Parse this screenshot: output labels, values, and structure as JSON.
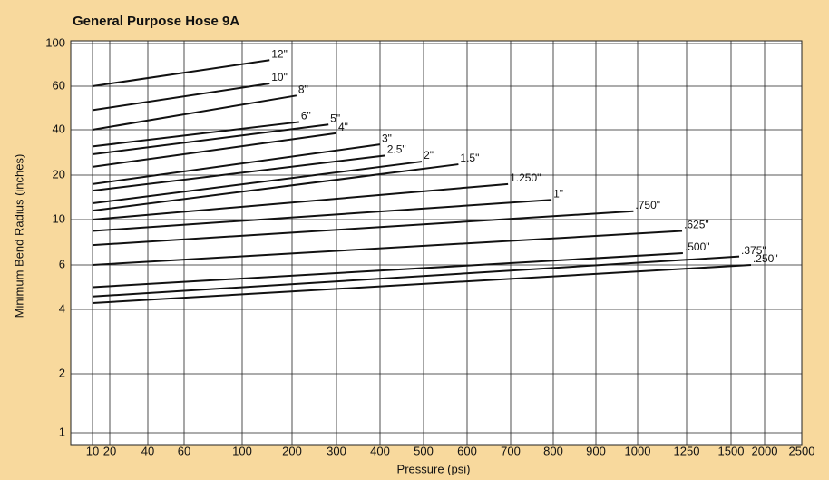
{
  "chart_data": {
    "type": "line",
    "title": "General Purpose Hose 9A",
    "x_label": "Pressure (psi)",
    "y_label": "Minimum Bend Radius (inches)",
    "xlim": [
      10,
      2500
    ],
    "ylim": [
      1,
      100
    ],
    "xticks": [
      10,
      20,
      40,
      60,
      100,
      200,
      300,
      400,
      500,
      600,
      700,
      800,
      900,
      1000,
      1250,
      1500,
      2000,
      2500
    ],
    "yticks": [
      1,
      2,
      4,
      6,
      10,
      20,
      40,
      60,
      100
    ],
    "grid": true,
    "color": "#111111",
    "series": [
      {
        "name": "12\"",
        "x": [
          10,
          155
        ],
        "values": [
          60,
          82
        ]
      },
      {
        "name": "10\"",
        "x": [
          10,
          155
        ],
        "values": [
          48,
          62
        ]
      },
      {
        "name": "8\"",
        "x": [
          10,
          210
        ],
        "values": [
          40,
          55
        ]
      },
      {
        "name": "6\"",
        "x": [
          10,
          216
        ],
        "values": [
          31,
          43
        ]
      },
      {
        "name": "5\"",
        "x": [
          10,
          282
        ],
        "values": [
          27.5,
          42
        ]
      },
      {
        "name": "4\"",
        "x": [
          10,
          300
        ],
        "values": [
          22.7,
          38
        ]
      },
      {
        "name": "3\"",
        "x": [
          10,
          400
        ],
        "values": [
          17.4,
          32
        ]
      },
      {
        "name": "2.5\"",
        "x": [
          10,
          412
        ],
        "values": [
          15.7,
          27
        ]
      },
      {
        "name": "2\"",
        "x": [
          10,
          496
        ],
        "values": [
          12.9,
          24.6
        ]
      },
      {
        "name": "1.5\"",
        "x": [
          10,
          580
        ],
        "values": [
          11.5,
          23.6
        ]
      },
      {
        "name": "1.250\"",
        "x": [
          10,
          694
        ],
        "values": [
          10,
          17.4
        ]
      },
      {
        "name": "1\"",
        "x": [
          10,
          796
        ],
        "values": [
          8.8,
          13.6
        ]
      },
      {
        "name": ".750\"",
        "x": [
          10,
          990
        ],
        "values": [
          7.5,
          11.4
        ]
      },
      {
        "name": ".625\"",
        "x": [
          10,
          1227
        ],
        "values": [
          6,
          8.8
        ]
      },
      {
        "name": ".500\"",
        "x": [
          10,
          1231
        ],
        "values": [
          4.9,
          6.85
        ]
      },
      {
        "name": ".375\"",
        "x": [
          10,
          1622
        ],
        "values": [
          4.5,
          6.6
        ]
      },
      {
        "name": ".250\"",
        "x": [
          10,
          1797
        ],
        "values": [
          4.24,
          6
        ]
      }
    ]
  }
}
